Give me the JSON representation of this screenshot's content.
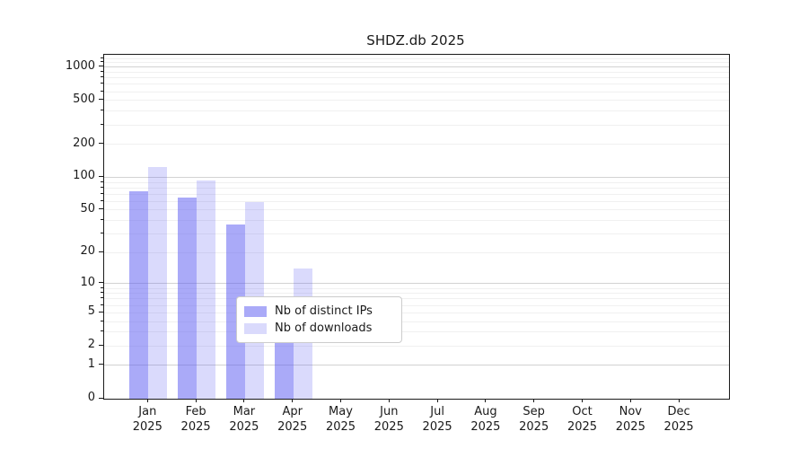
{
  "chart_data": {
    "type": "bar",
    "title": "SHDZ.db 2025",
    "x_axis": {
      "categories": [
        "Jan",
        "Feb",
        "Mar",
        "Apr",
        "May",
        "Jun",
        "Jul",
        "Aug",
        "Sep",
        "Oct",
        "Nov",
        "Dec"
      ],
      "year_label": "2025"
    },
    "y_axis": {
      "scale": "log1p",
      "tick_labels": [
        1000,
        500,
        200,
        100,
        50,
        20,
        10,
        5,
        2,
        1,
        0
      ],
      "major_gridlines": [
        1,
        10,
        100,
        1000
      ],
      "minor_gridline_extra": [
        1100,
        1200
      ],
      "ylim": [
        0,
        1300
      ]
    },
    "series": [
      {
        "name": "Nb of distinct IPs",
        "color": "rgba(86,86,242,0.5)",
        "values": [
          75,
          65,
          37,
          5,
          0,
          0,
          0,
          0,
          0,
          0,
          0,
          0
        ]
      },
      {
        "name": "Nb of downloads",
        "color": "rgba(86,86,242,0.22)",
        "values": [
          125,
          94,
          59,
          14,
          0,
          0,
          0,
          0,
          0,
          0,
          0,
          0
        ]
      }
    ],
    "legend": {
      "position": "lower-center",
      "entries": [
        "Nb of distinct IPs",
        "Nb of downloads"
      ]
    },
    "grid": true,
    "colors": {
      "grid_minor": "#f0f0f0",
      "grid_major": "#d2d2d2",
      "spine": "#1a1a1a",
      "text": "#1a1a1a",
      "background": "#ffffff"
    }
  }
}
